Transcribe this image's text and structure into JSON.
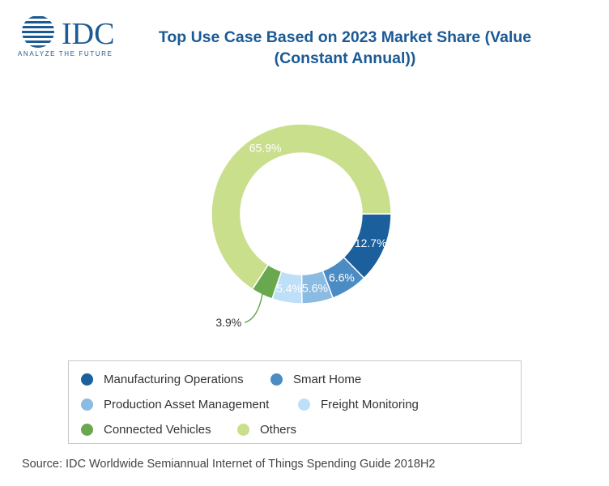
{
  "header": {
    "title": "Top Use Case Based on 2023 Market Share (Value (Constant Annual))",
    "logo": {
      "text": "IDC",
      "tagline": "ANALYZE THE FUTURE",
      "colors": {
        "globe": "#1b5a94",
        "text": "#1b5a94"
      }
    }
  },
  "chart_data": {
    "type": "donut",
    "title": "Top Use Case Based on 2023 Market Share (Value (Constant Annual))",
    "unit": "%",
    "legend_position": "bottom",
    "series": [
      {
        "name": "Manufacturing Operations",
        "value": 12.7,
        "label": "12.7%",
        "color": "#1b5f9c"
      },
      {
        "name": "Smart Home",
        "value": 6.6,
        "label": "6.6%",
        "color": "#4b8cc4"
      },
      {
        "name": "Production Asset Management",
        "value": 5.6,
        "label": "5.6%",
        "color": "#89bbe3"
      },
      {
        "name": "Freight Monitoring",
        "value": 5.4,
        "label": "5.4%",
        "color": "#bedff8"
      },
      {
        "name": "Connected Vehicles",
        "value": 3.9,
        "label": "3.9%",
        "color": "#6aa84f"
      },
      {
        "name": "Others",
        "value": 65.9,
        "label": "65.9%",
        "color": "#c9df8c"
      }
    ]
  },
  "footer": {
    "source": "Source: IDC Worldwide Semiannual Internet of Things Spending Guide 2018H2"
  }
}
